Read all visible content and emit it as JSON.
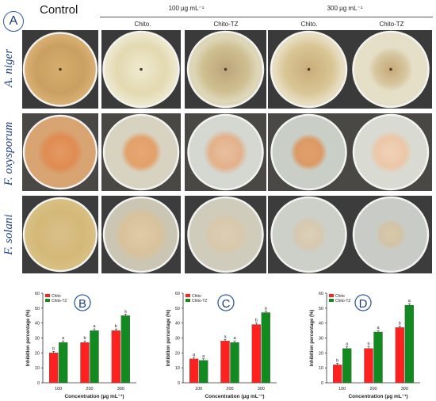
{
  "panel_a": {
    "letter": "A",
    "control_label": "Control",
    "conc_groups": [
      "100 µg mL⁻¹",
      "300 µg mL⁻¹"
    ],
    "column_labels": [
      "Chito.",
      "Chito-TZ",
      "Chito.",
      "Chito-TZ"
    ],
    "row_labels": [
      "A. niger",
      "F. oxysporum",
      "F. solani"
    ]
  },
  "charts": {
    "legend": [
      "Chito",
      "Chito-TZ"
    ],
    "colors": {
      "chito": "#ff2020",
      "chito_tz": "#138a20"
    },
    "ylabel": "Inhibition percentage (%)",
    "xlabel": "Concentration (µg mL⁻¹)",
    "yticks": [
      "0",
      "10",
      "20",
      "30",
      "40",
      "50",
      "60"
    ],
    "xticks": [
      "100",
      "200",
      "300"
    ]
  },
  "chart_data": [
    {
      "type": "bar",
      "label": "B",
      "categories": [
        "100",
        "200",
        "300"
      ],
      "ylim": [
        0,
        60
      ],
      "series": [
        {
          "name": "Chito",
          "values": [
            20,
            27,
            35
          ],
          "letters": [
            "b",
            "b",
            "b"
          ]
        },
        {
          "name": "Chito-TZ",
          "values": [
            27,
            35,
            45
          ],
          "letters": [
            "a",
            "a",
            "a"
          ]
        }
      ]
    },
    {
      "type": "bar",
      "label": "C",
      "categories": [
        "100",
        "200",
        "300"
      ],
      "ylim": [
        0,
        60
      ],
      "series": [
        {
          "name": "Chito",
          "values": [
            16,
            28,
            39
          ],
          "letters": [
            "a",
            "a",
            "b"
          ]
        },
        {
          "name": "Chito-TZ",
          "values": [
            15,
            27,
            47
          ],
          "letters": [
            "a",
            "a",
            "a"
          ]
        }
      ]
    },
    {
      "type": "bar",
      "label": "D",
      "categories": [
        "100",
        "200",
        "300"
      ],
      "ylim": [
        0,
        60
      ],
      "series": [
        {
          "name": "Chito",
          "values": [
            12,
            23,
            37
          ],
          "letters": [
            "b",
            "b",
            "b"
          ]
        },
        {
          "name": "Chito-TZ",
          "values": [
            23,
            34,
            52
          ],
          "letters": [
            "a",
            "a",
            "a"
          ]
        }
      ]
    }
  ]
}
